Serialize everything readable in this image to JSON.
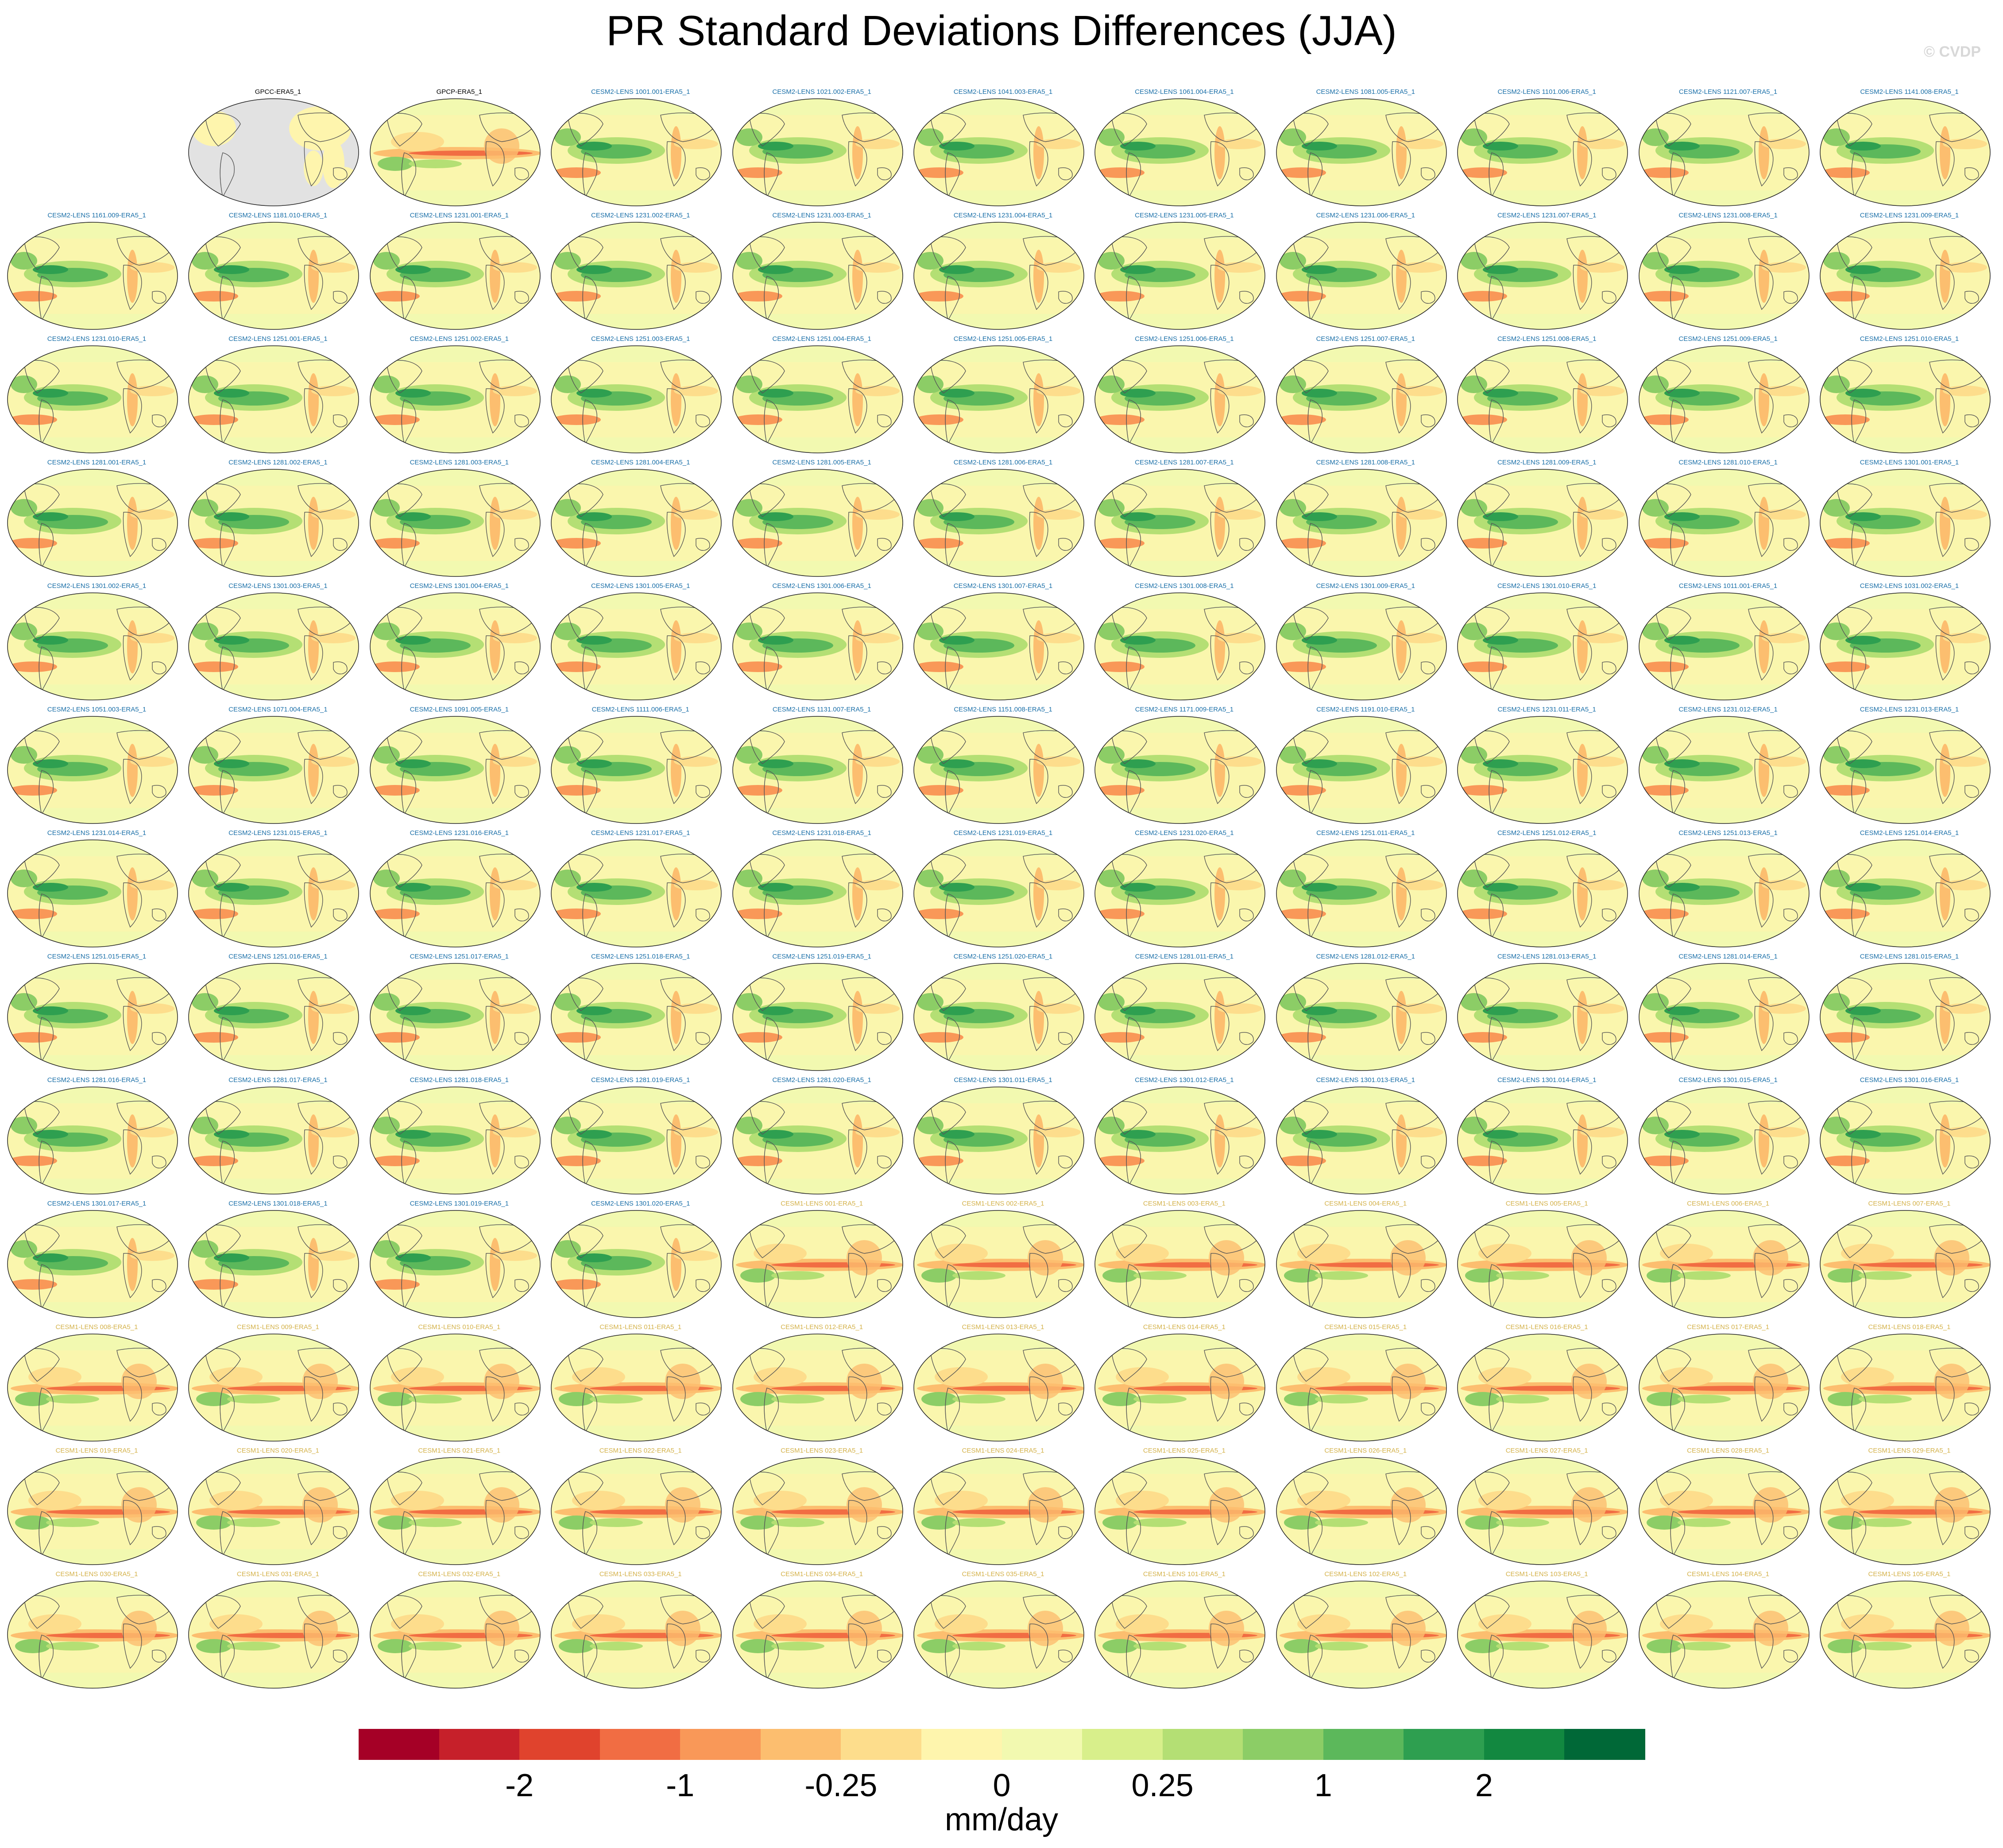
{
  "title": "PR Standard Deviations Differences (JJA)",
  "credit": "© CVDP",
  "chart_data": {
    "type": "heatmap",
    "layout": "small multiples of global maps, 11 columns x 14 rows",
    "panels": [
      "GPCC-ERA5_1",
      "GPCP-ERA5_1",
      "CESM2-LENS 1001.001-ERA5_1",
      "CESM2-LENS 1021.002-ERA5_1",
      "CESM2-LENS 1041.003-ERA5_1",
      "CESM2-LENS 1061.004-ERA5_1",
      "CESM2-LENS 1081.005-ERA5_1",
      "CESM2-LENS 1101.006-ERA5_1",
      "CESM2-LENS 1121.007-ERA5_1",
      "CESM2-LENS 1141.008-ERA5_1",
      "CESM2-LENS 1161.009-ERA5_1",
      "CESM2-LENS 1181.010-ERA5_1",
      "CESM2-LENS 1231.001-ERA5_1",
      "CESM2-LENS 1231.002-ERA5_1",
      "CESM2-LENS 1231.003-ERA5_1",
      "CESM2-LENS 1231.004-ERA5_1",
      "CESM2-LENS 1231.005-ERA5_1",
      "CESM2-LENS 1231.006-ERA5_1",
      "CESM2-LENS 1231.007-ERA5_1",
      "CESM2-LENS 1231.008-ERA5_1",
      "CESM2-LENS 1231.009-ERA5_1",
      "CESM2-LENS 1231.010-ERA5_1",
      "CESM2-LENS 1251.001-ERA5_1",
      "CESM2-LENS 1251.002-ERA5_1",
      "CESM2-LENS 1251.003-ERA5_1",
      "CESM2-LENS 1251.004-ERA5_1",
      "CESM2-LENS 1251.005-ERA5_1",
      "CESM2-LENS 1251.006-ERA5_1",
      "CESM2-LENS 1251.007-ERA5_1",
      "CESM2-LENS 1251.008-ERA5_1",
      "CESM2-LENS 1251.009-ERA5_1",
      "CESM2-LENS 1251.010-ERA5_1",
      "CESM2-LENS 1281.001-ERA5_1",
      "CESM2-LENS 1281.002-ERA5_1",
      "CESM2-LENS 1281.003-ERA5_1",
      "CESM2-LENS 1281.004-ERA5_1",
      "CESM2-LENS 1281.005-ERA5_1",
      "CESM2-LENS 1281.006-ERA5_1",
      "CESM2-LENS 1281.007-ERA5_1",
      "CESM2-LENS 1281.008-ERA5_1",
      "CESM2-LENS 1281.009-ERA5_1",
      "CESM2-LENS 1281.010-ERA5_1",
      "CESM2-LENS 1301.001-ERA5_1",
      "CESM2-LENS 1301.002-ERA5_1",
      "CESM2-LENS 1301.003-ERA5_1",
      "CESM2-LENS 1301.004-ERA5_1",
      "CESM2-LENS 1301.005-ERA5_1",
      "CESM2-LENS 1301.006-ERA5_1",
      "CESM2-LENS 1301.007-ERA5_1",
      "CESM2-LENS 1301.008-ERA5_1",
      "CESM2-LENS 1301.009-ERA5_1",
      "CESM2-LENS 1301.010-ERA5_1",
      "CESM2-LENS 1011.001-ERA5_1",
      "CESM2-LENS 1031.002-ERA5_1",
      "CESM2-LENS 1051.003-ERA5_1",
      "CESM2-LENS 1071.004-ERA5_1",
      "CESM2-LENS 1091.005-ERA5_1",
      "CESM2-LENS 1111.006-ERA5_1",
      "CESM2-LENS 1131.007-ERA5_1",
      "CESM2-LENS 1151.008-ERA5_1",
      "CESM2-LENS 1171.009-ERA5_1",
      "CESM2-LENS 1191.010-ERA5_1",
      "CESM2-LENS 1231.011-ERA5_1",
      "CESM2-LENS 1231.012-ERA5_1",
      "CESM2-LENS 1231.013-ERA5_1",
      "CESM2-LENS 1231.014-ERA5_1",
      "CESM2-LENS 1231.015-ERA5_1",
      "CESM2-LENS 1231.016-ERA5_1",
      "CESM2-LENS 1231.017-ERA5_1",
      "CESM2-LENS 1231.018-ERA5_1",
      "CESM2-LENS 1231.019-ERA5_1",
      "CESM2-LENS 1231.020-ERA5_1",
      "CESM2-LENS 1251.011-ERA5_1",
      "CESM2-LENS 1251.012-ERA5_1",
      "CESM2-LENS 1251.013-ERA5_1",
      "CESM2-LENS 1251.014-ERA5_1",
      "CESM2-LENS 1251.015-ERA5_1",
      "CESM2-LENS 1251.016-ERA5_1",
      "CESM2-LENS 1251.017-ERA5_1",
      "CESM2-LENS 1251.018-ERA5_1",
      "CESM2-LENS 1251.019-ERA5_1",
      "CESM2-LENS 1251.020-ERA5_1",
      "CESM2-LENS 1281.011-ERA5_1",
      "CESM2-LENS 1281.012-ERA5_1",
      "CESM2-LENS 1281.013-ERA5_1",
      "CESM2-LENS 1281.014-ERA5_1",
      "CESM2-LENS 1281.015-ERA5_1",
      "CESM2-LENS 1281.016-ERA5_1",
      "CESM2-LENS 1281.017-ERA5_1",
      "CESM2-LENS 1281.018-ERA5_1",
      "CESM2-LENS 1281.019-ERA5_1",
      "CESM2-LENS 1281.020-ERA5_1",
      "CESM2-LENS 1301.011-ERA5_1",
      "CESM2-LENS 1301.012-ERA5_1",
      "CESM2-LENS 1301.013-ERA5_1",
      "CESM2-LENS 1301.014-ERA5_1",
      "CESM2-LENS 1301.015-ERA5_1",
      "CESM2-LENS 1301.016-ERA5_1",
      "CESM2-LENS 1301.017-ERA5_1",
      "CESM2-LENS 1301.018-ERA5_1",
      "CESM2-LENS 1301.019-ERA5_1",
      "CESM2-LENS 1301.020-ERA5_1",
      "CESM1-LENS 001-ERA5_1",
      "CESM1-LENS 002-ERA5_1",
      "CESM1-LENS 003-ERA5_1",
      "CESM1-LENS 004-ERA5_1",
      "CESM1-LENS 005-ERA5_1",
      "CESM1-LENS 006-ERA5_1",
      "CESM1-LENS 007-ERA5_1",
      "CESM1-LENS 008-ERA5_1",
      "CESM1-LENS 009-ERA5_1",
      "CESM1-LENS 010-ERA5_1",
      "CESM1-LENS 011-ERA5_1",
      "CESM1-LENS 012-ERA5_1",
      "CESM1-LENS 013-ERA5_1",
      "CESM1-LENS 014-ERA5_1",
      "CESM1-LENS 015-ERA5_1",
      "CESM1-LENS 016-ERA5_1",
      "CESM1-LENS 017-ERA5_1",
      "CESM1-LENS 018-ERA5_1",
      "CESM1-LENS 019-ERA5_1",
      "CESM1-LENS 020-ERA5_1",
      "CESM1-LENS 021-ERA5_1",
      "CESM1-LENS 022-ERA5_1",
      "CESM1-LENS 023-ERA5_1",
      "CESM1-LENS 024-ERA5_1",
      "CESM1-LENS 025-ERA5_1",
      "CESM1-LENS 026-ERA5_1",
      "CESM1-LENS 027-ERA5_1",
      "CESM1-LENS 028-ERA5_1",
      "CESM1-LENS 029-ERA5_1",
      "CESM1-LENS 030-ERA5_1",
      "CESM1-LENS 031-ERA5_1",
      "CESM1-LENS 032-ERA5_1",
      "CESM1-LENS 033-ERA5_1",
      "CESM1-LENS 034-ERA5_1",
      "CESM1-LENS 035-ERA5_1",
      "CESM1-LENS 101-ERA5_1",
      "CESM1-LENS 102-ERA5_1",
      "CESM1-LENS 103-ERA5_1",
      "CESM1-LENS 104-ERA5_1",
      "CESM1-LENS 105-ERA5_1"
    ],
    "label_colors": {
      "observations": "#000000",
      "CESM2-LENS": "#1a6fa8",
      "CESM1-LENS": "#d4b24a"
    },
    "colorbar": {
      "colors": [
        "#a50026",
        "#c6202a",
        "#e0432d",
        "#f16d43",
        "#f99858",
        "#fcbe6f",
        "#fddd8c",
        "#fef5ad",
        "#f2f9b0",
        "#d8ef8b",
        "#b4df74",
        "#8ccd66",
        "#5cb85b",
        "#2e9f50",
        "#128840",
        "#006837"
      ],
      "tick_labels": [
        "-2",
        "-1",
        "-0.25",
        "0",
        "0.25",
        "1",
        "2"
      ],
      "tick_boundaries": [
        2,
        4,
        6,
        8,
        10,
        12,
        14
      ],
      "units": "mm/day"
    }
  }
}
